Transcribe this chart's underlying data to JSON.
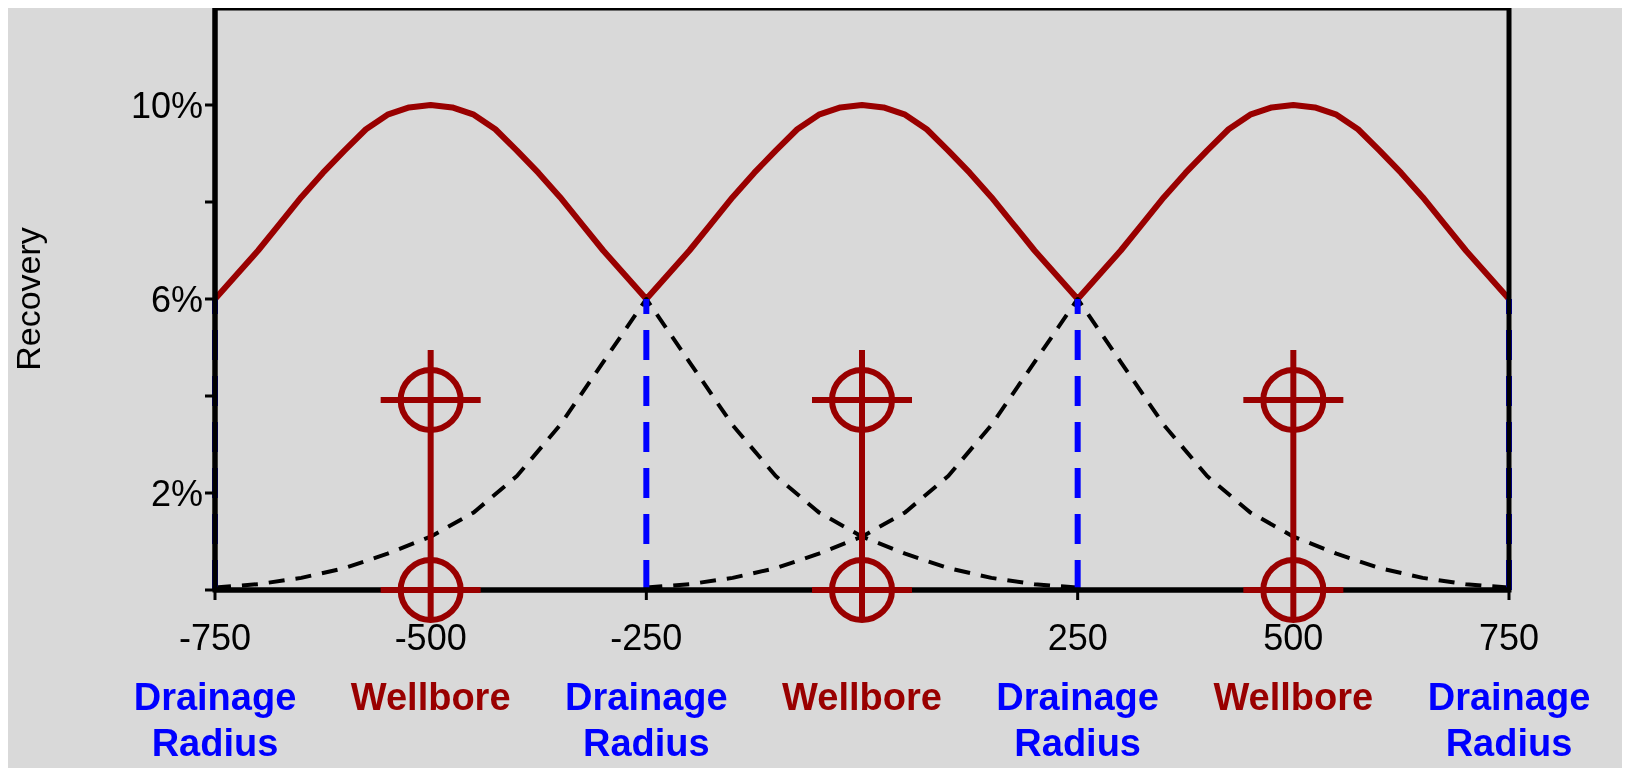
{
  "chart_data": {
    "type": "line",
    "ylabel": "Recovery",
    "xlim": [
      -750,
      750
    ],
    "ylim": [
      0,
      12
    ],
    "xticks": [
      -750,
      -500,
      -250,
      {
        "value": 0,
        "label": null
      },
      250,
      500,
      750
    ],
    "yticks": [
      {
        "value": 0,
        "label": null
      },
      {
        "value": 2,
        "label": "2%"
      },
      {
        "value": 4,
        "label": null
      },
      {
        "value": 6,
        "label": "6%"
      },
      {
        "value": 8,
        "label": null
      },
      {
        "value": 10,
        "label": "10%"
      }
    ],
    "series": [
      {
        "color": "#990000",
        "line_style": "solid",
        "x": [
          -750,
          -725,
          -700,
          -675,
          -650,
          -625,
          -600,
          -575,
          -550,
          -525,
          -500,
          -475,
          -450,
          -425,
          -400,
          -375,
          -350,
          -325,
          -300,
          -275,
          -250,
          -225,
          -200,
          -175,
          -150,
          -125,
          -100,
          -75,
          -50,
          -25,
          0,
          25,
          50,
          75,
          100,
          125,
          150,
          175,
          200,
          225,
          250,
          275,
          300,
          325,
          350,
          375,
          400,
          425,
          450,
          475,
          500,
          525,
          550,
          575,
          600,
          625,
          650,
          675,
          700,
          725,
          750
        ],
        "values": [
          6,
          6.5,
          7,
          7.55,
          8.1,
          8.6,
          9.06,
          9.5,
          9.8,
          9.95,
          10,
          9.95,
          9.8,
          9.5,
          9.06,
          8.6,
          8.1,
          7.55,
          7,
          6.5,
          6,
          6.5,
          7,
          7.55,
          8.1,
          8.6,
          9.06,
          9.5,
          9.8,
          9.95,
          10,
          9.95,
          9.8,
          9.5,
          9.06,
          8.6,
          8.1,
          7.55,
          7,
          6.5,
          6,
          6.5,
          7,
          7.55,
          8.1,
          8.6,
          9.06,
          9.5,
          9.8,
          9.95,
          10,
          9.95,
          9.8,
          9.5,
          9.06,
          8.6,
          8.1,
          7.55,
          7,
          6.5,
          6
        ]
      },
      {
        "color": "#000000",
        "line_style": "dashed",
        "x": [
          -750,
          -700,
          -650,
          -600,
          -550,
          -500,
          -450,
          -400,
          -350,
          -300,
          -275,
          -250,
          -225,
          -200,
          -150,
          -100,
          -50,
          0,
          50,
          100,
          150,
          200,
          250
        ],
        "values": [
          0.05,
          0.12,
          0.25,
          0.45,
          0.75,
          1.1,
          1.6,
          2.35,
          3.4,
          4.7,
          5.35,
          6,
          5.35,
          4.7,
          3.4,
          2.35,
          1.6,
          1.1,
          0.75,
          0.45,
          0.25,
          0.12,
          0.05
        ]
      },
      {
        "color": "#000000",
        "line_style": "dashed",
        "x": [
          -250,
          -200,
          -150,
          -100,
          -50,
          0,
          50,
          100,
          150,
          200,
          225,
          250,
          275,
          300,
          350,
          400,
          450,
          500,
          550,
          600,
          650,
          700,
          750
        ],
        "values": [
          0.05,
          0.12,
          0.25,
          0.45,
          0.75,
          1.1,
          1.6,
          2.35,
          3.4,
          4.7,
          5.35,
          6,
          5.35,
          4.7,
          3.4,
          2.35,
          1.6,
          1.1,
          0.75,
          0.45,
          0.25,
          0.12,
          0.05
        ]
      }
    ],
    "ref_lines": [
      {
        "axis": "x",
        "value": -750,
        "label": "Drainage\nRadius",
        "color": "#0000ff",
        "line_style": "dashed"
      },
      {
        "axis": "x",
        "value": -250,
        "label": "Drainage\nRadius",
        "color": "#0000ff",
        "line_style": "dashed"
      },
      {
        "axis": "x",
        "value": 250,
        "label": "Drainage\nRadius",
        "color": "#0000ff",
        "line_style": "dashed"
      },
      {
        "axis": "x",
        "value": 750,
        "label": "Drainage\nRadius",
        "color": "#0000ff",
        "line_style": "dashed"
      }
    ],
    "annotations": [
      "Wellbore",
      "Wellbore",
      "Wellbore"
    ]
  }
}
